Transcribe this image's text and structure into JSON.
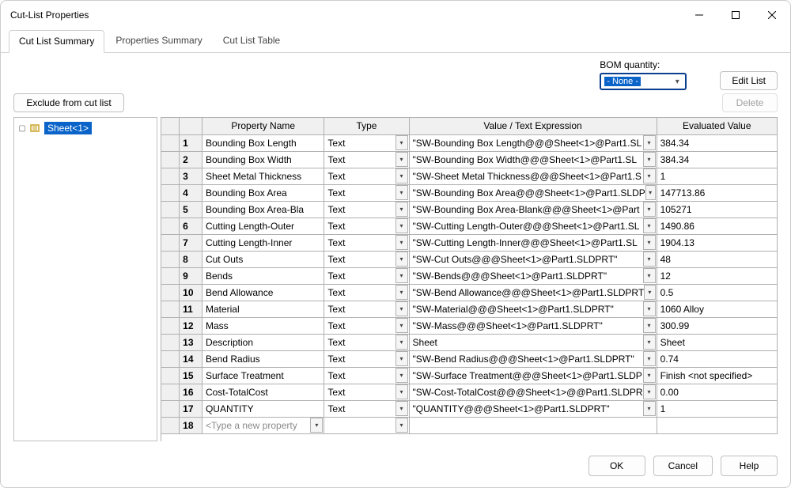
{
  "window": {
    "title": "Cut-List Properties"
  },
  "tabs": [
    {
      "label": "Cut List Summary",
      "active": true
    },
    {
      "label": "Properties Summary",
      "active": false
    },
    {
      "label": "Cut List Table",
      "active": false
    }
  ],
  "bom": {
    "label": "BOM quantity:",
    "selected": "- None -"
  },
  "buttons": {
    "editList": "Edit List",
    "exclude": "Exclude from cut list",
    "delete": "Delete",
    "ok": "OK",
    "cancel": "Cancel",
    "help": "Help"
  },
  "tree": {
    "item": "Sheet<1>"
  },
  "grid": {
    "headers": {
      "name": "Property Name",
      "type": "Type",
      "value": "Value / Text Expression",
      "eval": "Evaluated Value"
    },
    "newRowPlaceholder": "<Type a new property",
    "rows": [
      {
        "n": "1",
        "name": "Bounding Box Length",
        "type": "Text",
        "value": "\"SW-Bounding Box Length@@@Sheet<1>@Part1.SL",
        "eval": "384.34"
      },
      {
        "n": "2",
        "name": "Bounding Box Width",
        "type": "Text",
        "value": "\"SW-Bounding Box Width@@@Sheet<1>@Part1.SL",
        "eval": "384.34"
      },
      {
        "n": "3",
        "name": "Sheet Metal Thickness",
        "type": "Text",
        "value": "\"SW-Sheet Metal Thickness@@@Sheet<1>@Part1.S",
        "eval": "1"
      },
      {
        "n": "4",
        "name": "Bounding Box Area",
        "type": "Text",
        "value": "\"SW-Bounding Box Area@@@Sheet<1>@Part1.SLDP",
        "eval": "147713.86"
      },
      {
        "n": "5",
        "name": "Bounding Box Area-Bla",
        "type": "Text",
        "value": "\"SW-Bounding Box Area-Blank@@@Sheet<1>@Part",
        "eval": "105271"
      },
      {
        "n": "6",
        "name": "Cutting Length-Outer",
        "type": "Text",
        "value": "\"SW-Cutting Length-Outer@@@Sheet<1>@Part1.SL",
        "eval": "1490.86"
      },
      {
        "n": "7",
        "name": "Cutting Length-Inner",
        "type": "Text",
        "value": "\"SW-Cutting Length-Inner@@@Sheet<1>@Part1.SL",
        "eval": "1904.13"
      },
      {
        "n": "8",
        "name": "Cut Outs",
        "type": "Text",
        "value": "\"SW-Cut Outs@@@Sheet<1>@Part1.SLDPRT\"",
        "eval": "48"
      },
      {
        "n": "9",
        "name": "Bends",
        "type": "Text",
        "value": "\"SW-Bends@@@Sheet<1>@Part1.SLDPRT\"",
        "eval": "12"
      },
      {
        "n": "10",
        "name": "Bend Allowance",
        "type": "Text",
        "value": "\"SW-Bend Allowance@@@Sheet<1>@Part1.SLDPRT",
        "eval": "0.5"
      },
      {
        "n": "11",
        "name": "Material",
        "type": "Text",
        "value": "\"SW-Material@@@Sheet<1>@Part1.SLDPRT\"",
        "eval": "1060 Alloy"
      },
      {
        "n": "12",
        "name": "Mass",
        "type": "Text",
        "value": "\"SW-Mass@@@Sheet<1>@Part1.SLDPRT\"",
        "eval": "300.99"
      },
      {
        "n": "13",
        "name": "Description",
        "type": "Text",
        "value": "Sheet",
        "eval": "Sheet"
      },
      {
        "n": "14",
        "name": "Bend Radius",
        "type": "Text",
        "value": "\"SW-Bend Radius@@@Sheet<1>@Part1.SLDPRT\"",
        "eval": "0.74"
      },
      {
        "n": "15",
        "name": "Surface Treatment",
        "type": "Text",
        "value": "\"SW-Surface Treatment@@@Sheet<1>@Part1.SLDP",
        "eval": "Finish <not specified>"
      },
      {
        "n": "16",
        "name": "Cost-TotalCost",
        "type": "Text",
        "value": "\"SW-Cost-TotalCost@@@Sheet<1>@@Part1.SLDPR",
        "eval": "0.00"
      },
      {
        "n": "17",
        "name": "QUANTITY",
        "type": "Text",
        "value": "\"QUANTITY@@@Sheet<1>@Part1.SLDPRT\"",
        "eval": "1"
      }
    ]
  },
  "colors": {
    "selectionBg": "#0a63c9",
    "selectionBorder": "#0a3e8f",
    "gridBorder": "#b0b0b0",
    "headerBg": "#f0f0f0"
  }
}
